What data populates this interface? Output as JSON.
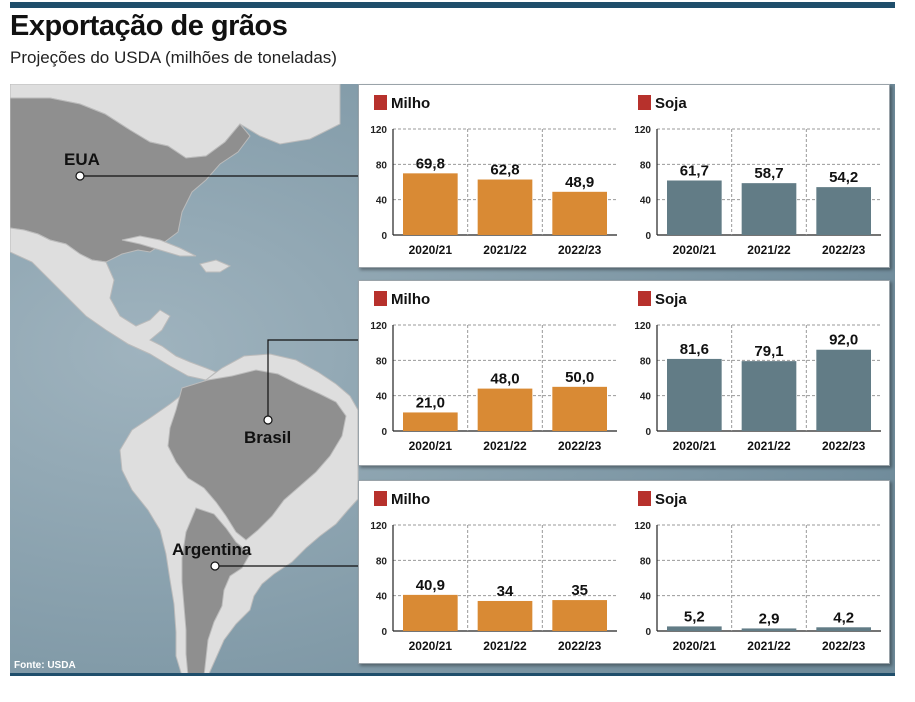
{
  "header": {
    "title": "Exportação de grãos",
    "subtitle": "Projeções do USDA (milhões de toneladas)"
  },
  "footer": {
    "source": "Fonte: USDA"
  },
  "colors": {
    "milho": "#d98a34",
    "soja": "#627c86",
    "legend_square": "#b7312c",
    "ocean": "#7e98a6",
    "land": "#dedede",
    "highlight_land": "#8f8f8f",
    "rule": "#1f4e6b"
  },
  "countries": [
    "EUA",
    "Brasil",
    "Argentina"
  ],
  "chart_data": [
    {
      "type": "bar",
      "country": "EUA",
      "legend": "Milho",
      "categories": [
        "2020/21",
        "2021/22",
        "2022/23"
      ],
      "values": [
        69.8,
        62.8,
        48.9
      ],
      "labels": [
        "69,8",
        "62,8",
        "48,9"
      ],
      "ylim": [
        0,
        120
      ],
      "yticks": [
        0,
        40,
        80,
        120
      ],
      "color": "#d98a34"
    },
    {
      "type": "bar",
      "country": "EUA",
      "legend": "Soja",
      "categories": [
        "2020/21",
        "2021/22",
        "2022/23"
      ],
      "values": [
        61.7,
        58.7,
        54.2
      ],
      "labels": [
        "61,7",
        "58,7",
        "54,2"
      ],
      "ylim": [
        0,
        120
      ],
      "yticks": [
        0,
        40,
        80,
        120
      ],
      "color": "#627c86"
    },
    {
      "type": "bar",
      "country": "Brasil",
      "legend": "Milho",
      "categories": [
        "2020/21",
        "2021/22",
        "2022/23"
      ],
      "values": [
        21.0,
        48.0,
        50.0
      ],
      "labels": [
        "21,0",
        "48,0",
        "50,0"
      ],
      "ylim": [
        0,
        120
      ],
      "yticks": [
        0,
        40,
        80,
        120
      ],
      "color": "#d98a34"
    },
    {
      "type": "bar",
      "country": "Brasil",
      "legend": "Soja",
      "categories": [
        "2020/21",
        "2021/22",
        "2022/23"
      ],
      "values": [
        81.6,
        79.1,
        92.0
      ],
      "labels": [
        "81,6",
        "79,1",
        "92,0"
      ],
      "ylim": [
        0,
        120
      ],
      "yticks": [
        0,
        40,
        80,
        120
      ],
      "color": "#627c86"
    },
    {
      "type": "bar",
      "country": "Argentina",
      "legend": "Milho",
      "categories": [
        "2020/21",
        "2021/22",
        "2022/23"
      ],
      "values": [
        40.9,
        34,
        35
      ],
      "labels": [
        "40,9",
        "34",
        "35"
      ],
      "ylim": [
        0,
        120
      ],
      "yticks": [
        0,
        40,
        80,
        120
      ],
      "color": "#d98a34"
    },
    {
      "type": "bar",
      "country": "Argentina",
      "legend": "Soja",
      "categories": [
        "2020/21",
        "2021/22",
        "2022/23"
      ],
      "values": [
        5.2,
        2.9,
        4.2
      ],
      "labels": [
        "5,2",
        "2,9",
        "4,2"
      ],
      "ylim": [
        0,
        120
      ],
      "yticks": [
        0,
        40,
        80,
        120
      ],
      "color": "#627c86"
    }
  ]
}
